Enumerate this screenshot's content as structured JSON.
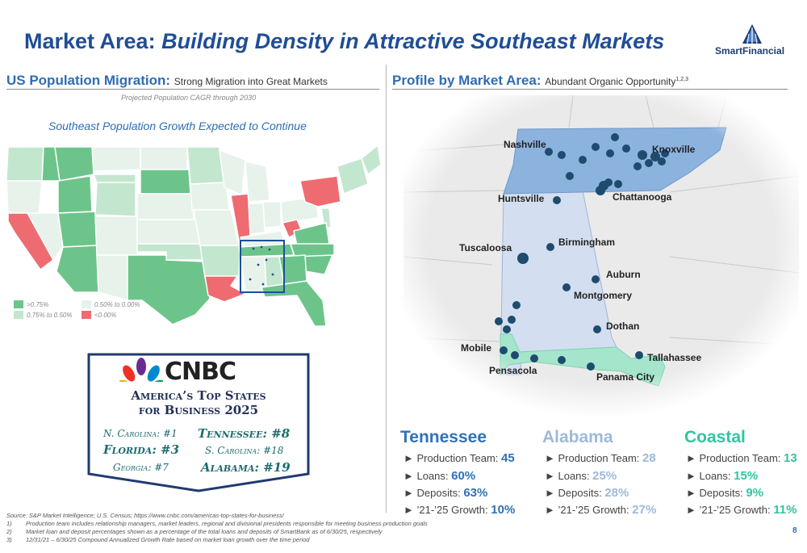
{
  "title": {
    "part1": "Market Area:",
    "part2": "Building Density in Attractive Southeast Markets"
  },
  "logo": {
    "text": "SmartFinancial"
  },
  "left": {
    "heading": "US Population Migration:",
    "subheading": "Strong Migration into Great Markets",
    "note": "Projected Population CAGR through 2030",
    "map_title": "Southeast Population Growth Expected to Continue",
    "legend": [
      {
        "label": ">0.75%",
        "color": "#6cc48a"
      },
      {
        "label": "0.50% to 0.00%",
        "color": "#e6f2ea"
      },
      {
        "label": "0.75% to 0.50%",
        "color": "#c3e6cf"
      },
      {
        "label": "<0.00%",
        "color": "#ee6b72"
      }
    ]
  },
  "cnbc": {
    "logo": "CNBC",
    "headline1": "America’s Top States",
    "headline2": "for Business 2025",
    "ranks": [
      "N. Carolina: #1",
      "Tennessee: #8",
      "Florida: #3",
      "S. Carolina: #18",
      "Georgia: #7",
      "Alabama: #19"
    ]
  },
  "right": {
    "heading": "Profile by Market Area:",
    "subheading": "Abundant Organic Opportunity",
    "superscript": "1,2,3",
    "cities": [
      "Nashville",
      "Knoxville",
      "Huntsville",
      "Chattanooga",
      "Tuscaloosa",
      "Birmingham",
      "Auburn",
      "Montgomery",
      "Dothan",
      "Mobile",
      "Pensacola",
      "Tallahassee",
      "Panama City"
    ]
  },
  "stats": [
    {
      "name": "Tennessee",
      "team": "45",
      "loans": "60%",
      "deposits": "63%",
      "growth": "10%"
    },
    {
      "name": "Alabama",
      "team": "28",
      "loans": "25%",
      "deposits": "28%",
      "growth": "27%"
    },
    {
      "name": "Coastal",
      "team": "13",
      "loans": "15%",
      "deposits": "9%",
      "growth": "11%"
    }
  ],
  "stat_labels": {
    "team": "Production Team:",
    "loans": "Loans:",
    "deposits": "Deposits:",
    "growth": "’21-’25 Growth:"
  },
  "footnotes": {
    "source": "Source: S&P Market Intelligence; U.S. Census; https://www.cnbc.com/americas-top-states-for-business/",
    "n1_num": "1)",
    "n1": "Production team includes relationship managers, market leaders, regional and divisional presidents responsible for meeting business production goals",
    "n2_num": "2)",
    "n2": "Market loan and deposit percentages shown as a percentage of the total loans and deposits of SmartBank as of 6/30/25, respectively",
    "n3_num": "3)",
    "n3": "12/31/21 – 6/30/25 Compound Annualized Growth Rate based on market loan growth over the time period"
  },
  "page_number": "8"
}
